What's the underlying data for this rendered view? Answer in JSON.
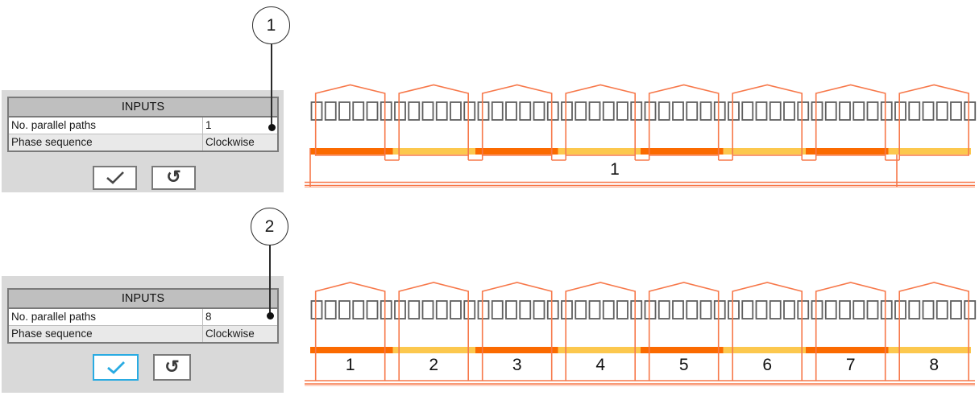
{
  "colors": {
    "phase_orange": "#FB6A00",
    "phase_yellow": "#FCC84E",
    "coil_outline": "#F7784A",
    "coil_light": "#FBAF92",
    "slot_border": "#5F5F5F",
    "accent_blue": "#29ABE2",
    "panel_bg": "#D9D9D9",
    "header_bg": "#BFBFBF",
    "table_border": "#7A7A7A"
  },
  "icons": {
    "confirm": "check-icon",
    "reset": "rotate-ccw-icon",
    "reset_glyph": "↺"
  },
  "callouts": [
    {
      "label": "1"
    },
    {
      "label": "2"
    }
  ],
  "panels": [
    {
      "title": "INPUTS",
      "rows": [
        {
          "label": "No. parallel paths",
          "value": "1"
        },
        {
          "label": "Phase sequence",
          "value": "Clockwise"
        }
      ],
      "confirm_active": false
    },
    {
      "title": "INPUTS",
      "rows": [
        {
          "label": "No. parallel paths",
          "value": "8"
        },
        {
          "label": "Phase sequence",
          "value": "Clockwise"
        }
      ],
      "confirm_active": true
    }
  ],
  "diagrams": [
    {
      "slots": 48,
      "coil_groups": 8,
      "connection": "series",
      "path_labels": [
        "1"
      ]
    },
    {
      "slots": 48,
      "coil_groups": 8,
      "connection": "parallel",
      "path_labels": [
        "1",
        "2",
        "3",
        "4",
        "5",
        "6",
        "7",
        "8"
      ]
    }
  ]
}
